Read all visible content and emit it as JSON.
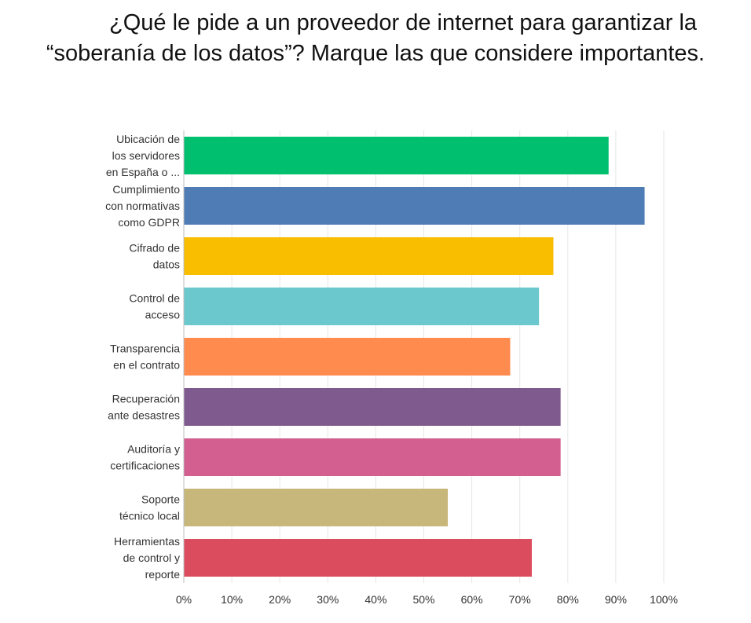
{
  "title_line1": "¿Qué le pide a un proveedor de internet para garantizar la",
  "title_line2": "“soberanía de los datos”? Marque las que considere importantes.",
  "chart_data": {
    "type": "bar",
    "orientation": "horizontal",
    "title": "¿Qué le pide a un proveedor de internet para garantizar la “soberanía de los datos”? Marque las que considere importantes.",
    "categories": [
      [
        "Ubicación de",
        "los servidores",
        "en España o ..."
      ],
      [
        "Cumplimiento",
        "con normativas",
        "como GDPR"
      ],
      [
        "Cifrado de",
        "datos"
      ],
      [
        "Control de",
        "acceso"
      ],
      [
        "Transparencia",
        "en el contrato"
      ],
      [
        "Recuperación",
        "ante desastres"
      ],
      [
        "Auditoría y",
        "certificaciones"
      ],
      [
        "Soporte",
        "técnico local"
      ],
      [
        "Herramientas",
        "de control y",
        "reporte"
      ]
    ],
    "values": [
      88.5,
      96,
      77,
      74,
      68,
      78.5,
      78.5,
      55,
      72.5
    ],
    "colors": [
      "#00bf6f",
      "#507cb6",
      "#f9be00",
      "#6bc8cd",
      "#ff8b4f",
      "#7f5a8f",
      "#d25f90",
      "#c8b77a",
      "#dc4c5f"
    ],
    "xlim": [
      0,
      100
    ],
    "ticks": [
      0,
      10,
      20,
      30,
      40,
      50,
      60,
      70,
      80,
      90,
      100
    ],
    "tick_labels": [
      "0%",
      "10%",
      "20%",
      "30%",
      "40%",
      "50%",
      "60%",
      "70%",
      "80%",
      "90%",
      "100%"
    ],
    "grid": true
  }
}
